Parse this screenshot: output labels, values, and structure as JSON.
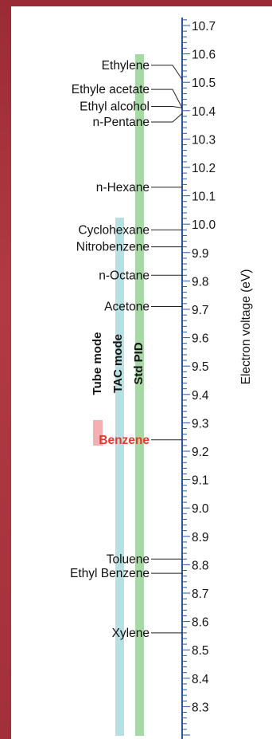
{
  "scale": {
    "axis_label": "Electron voltage (eV)",
    "ticks": [
      "10.7",
      "10.6",
      "10.5",
      "10.4",
      "10.3",
      "10.2",
      "10.1",
      "10.0",
      "9.9",
      "9.8",
      "9.7",
      "9.6",
      "9.5",
      "9.4",
      "9.3",
      "9.2",
      "9.1",
      "9.0",
      "8.9",
      "8.8",
      "8.7",
      "8.6",
      "8.5",
      "8.4",
      "8.3"
    ],
    "min": 8.2,
    "max": 10.8,
    "colors": {
      "scale": "#2a55a8",
      "text": "#111111",
      "frame": "#a52c38"
    }
  },
  "lamps": [
    {
      "name": "Tube mode",
      "low": 9.2,
      "high": 9.25,
      "color": "#f4b0b0"
    },
    {
      "name": "TAC mode",
      "low": 8.2,
      "high": 10.0,
      "color": "#b7e0e3"
    },
    {
      "name": "Std PID",
      "low": 8.2,
      "high": 10.6,
      "color": "#a9d8a7"
    }
  ],
  "compounds": [
    {
      "name": "Ethylene",
      "ev": 10.51,
      "label_ev": 10.56
    },
    {
      "name": "Ethyle acetate",
      "ev": 10.41,
      "label_ev": 10.475
    },
    {
      "name": "Ethyl alcohol",
      "ev": 10.41,
      "label_ev": 10.415
    },
    {
      "name": "n-Pentane",
      "ev": 10.39,
      "label_ev": 10.36
    },
    {
      "name": "n-Hexane",
      "ev": 10.13,
      "label_ev": 10.13
    },
    {
      "name": "Cyclohexane",
      "ev": 9.98,
      "label_ev": 9.98
    },
    {
      "name": "Nitrobenzene",
      "ev": 9.92,
      "label_ev": 9.92
    },
    {
      "name": "n-Octane",
      "ev": 9.82,
      "label_ev": 9.82
    },
    {
      "name": "Acetone",
      "ev": 9.71,
      "label_ev": 9.71
    },
    {
      "name": "Benzene",
      "ev": 9.24,
      "label_ev": 9.24,
      "color": "#e8372c"
    },
    {
      "name": "Toluene",
      "ev": 8.82,
      "label_ev": 8.82
    },
    {
      "name": "Ethyl Benzene",
      "ev": 8.77,
      "label_ev": 8.77
    },
    {
      "name": "Xylene",
      "ev": 8.56,
      "label_ev": 8.56
    }
  ]
}
